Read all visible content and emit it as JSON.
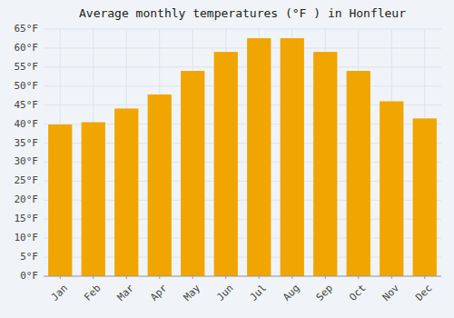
{
  "chart_data": {
    "type": "bar",
    "title": "Average monthly temperatures (°F ) in Honfleur",
    "categories": [
      "Jan",
      "Feb",
      "Mar",
      "Apr",
      "May",
      "Jun",
      "Jul",
      "Aug",
      "Sep",
      "Oct",
      "Nov",
      "Dec"
    ],
    "values": [
      39.9,
      40.5,
      44.1,
      47.8,
      54.0,
      59.0,
      62.6,
      62.6,
      59.0,
      54.0,
      46.0,
      41.5
    ],
    "color": "#F0A500",
    "ylim": [
      0,
      65
    ],
    "yticks": [
      {
        "value": 0,
        "label": "0°F"
      },
      {
        "value": 5,
        "label": "5°F"
      },
      {
        "value": 10,
        "label": "10°F"
      },
      {
        "value": 15,
        "label": "15°F"
      },
      {
        "value": 20,
        "label": "20°F"
      },
      {
        "value": 25,
        "label": "25°F"
      },
      {
        "value": 30,
        "label": "30°F"
      },
      {
        "value": 35,
        "label": "35°F"
      },
      {
        "value": 40,
        "label": "40°F"
      },
      {
        "value": 45,
        "label": "45°F"
      },
      {
        "value": 50,
        "label": "50°F"
      },
      {
        "value": 55,
        "label": "55°F"
      },
      {
        "value": 60,
        "label": "60°F"
      },
      {
        "value": 65,
        "label": "65°F"
      }
    ],
    "grid": true
  }
}
